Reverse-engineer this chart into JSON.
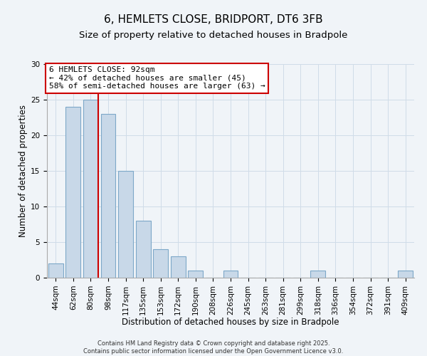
{
  "title": "6, HEMLETS CLOSE, BRIDPORT, DT6 3FB",
  "subtitle": "Size of property relative to detached houses in Bradpole",
  "xlabel": "Distribution of detached houses by size in Bradpole",
  "ylabel": "Number of detached properties",
  "bar_labels": [
    "44sqm",
    "62sqm",
    "80sqm",
    "98sqm",
    "117sqm",
    "135sqm",
    "153sqm",
    "172sqm",
    "190sqm",
    "208sqm",
    "226sqm",
    "245sqm",
    "263sqm",
    "281sqm",
    "299sqm",
    "318sqm",
    "336sqm",
    "354sqm",
    "372sqm",
    "391sqm",
    "409sqm"
  ],
  "bar_values": [
    2,
    24,
    25,
    23,
    15,
    8,
    4,
    3,
    1,
    0,
    1,
    0,
    0,
    0,
    0,
    1,
    0,
    0,
    0,
    0,
    1
  ],
  "bar_color": "#c8d8e8",
  "bar_edge_color": "#7da8c8",
  "vline_color": "#cc0000",
  "annotation_title": "6 HEMLETS CLOSE: 92sqm",
  "annotation_line2": "← 42% of detached houses are smaller (45)",
  "annotation_line3": "58% of semi-detached houses are larger (63) →",
  "annotation_box_color": "#ffffff",
  "annotation_box_edge": "#cc0000",
  "ylim": [
    0,
    30
  ],
  "yticks": [
    0,
    5,
    10,
    15,
    20,
    25,
    30
  ],
  "grid_color": "#d0dce8",
  "background_color": "#f0f4f8",
  "footer1": "Contains HM Land Registry data © Crown copyright and database right 2025.",
  "footer2": "Contains public sector information licensed under the Open Government Licence v3.0.",
  "title_fontsize": 11,
  "subtitle_fontsize": 9.5,
  "annotation_fontsize": 8,
  "axis_label_fontsize": 8.5,
  "tick_fontsize": 7.5,
  "footer_fontsize": 6
}
